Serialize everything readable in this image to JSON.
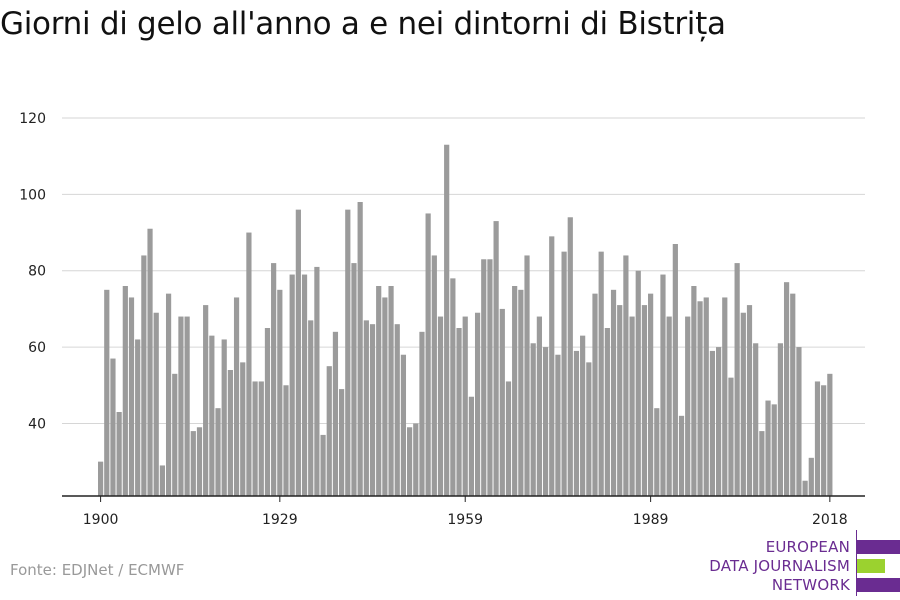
{
  "title": "Giorni di gelo all'anno a e nei dintorni di Bistrița",
  "source": "Fonte: EDJNet / ECMWF",
  "logo": {
    "lines": [
      "EUROPEAN",
      "DATA JOURNALISM",
      "NETWORK"
    ],
    "colors": {
      "purple": "#6a2c91",
      "green": "#9bd22f"
    }
  },
  "colors": {
    "bar": "#9b9b9b",
    "grid": "#d6d6d6",
    "axis": "#222222"
  },
  "chart_data": {
    "type": "bar",
    "x_start": 1900,
    "x_end": 2018,
    "x_ticks": [
      1900,
      1929,
      1959,
      1989,
      2018
    ],
    "y_ticks": [
      40,
      60,
      80,
      100,
      120
    ],
    "ylim": [
      21,
      120
    ],
    "grid": true,
    "values": [
      30,
      75,
      57,
      43,
      76,
      73,
      62,
      84,
      91,
      69,
      29,
      74,
      53,
      68,
      68,
      38,
      39,
      71,
      63,
      44,
      62,
      54,
      73,
      56,
      90,
      51,
      51,
      65,
      82,
      75,
      50,
      79,
      96,
      79,
      67,
      81,
      37,
      55,
      64,
      49,
      96,
      82,
      98,
      67,
      66,
      76,
      73,
      76,
      66,
      58,
      39,
      40,
      64,
      95,
      84,
      68,
      113,
      78,
      65,
      68,
      47,
      69,
      83,
      83,
      93,
      70,
      51,
      76,
      75,
      84,
      61,
      68,
      60,
      89,
      58,
      85,
      94,
      59,
      63,
      56,
      74,
      85,
      65,
      75,
      71,
      84,
      68,
      80,
      71,
      74,
      44,
      79,
      68,
      87,
      42,
      68,
      76,
      72,
      73,
      59,
      60,
      73,
      52,
      82,
      69,
      71,
      61,
      38,
      46,
      45,
      61,
      77,
      74,
      60,
      25,
      31,
      51,
      50,
      53
    ]
  }
}
